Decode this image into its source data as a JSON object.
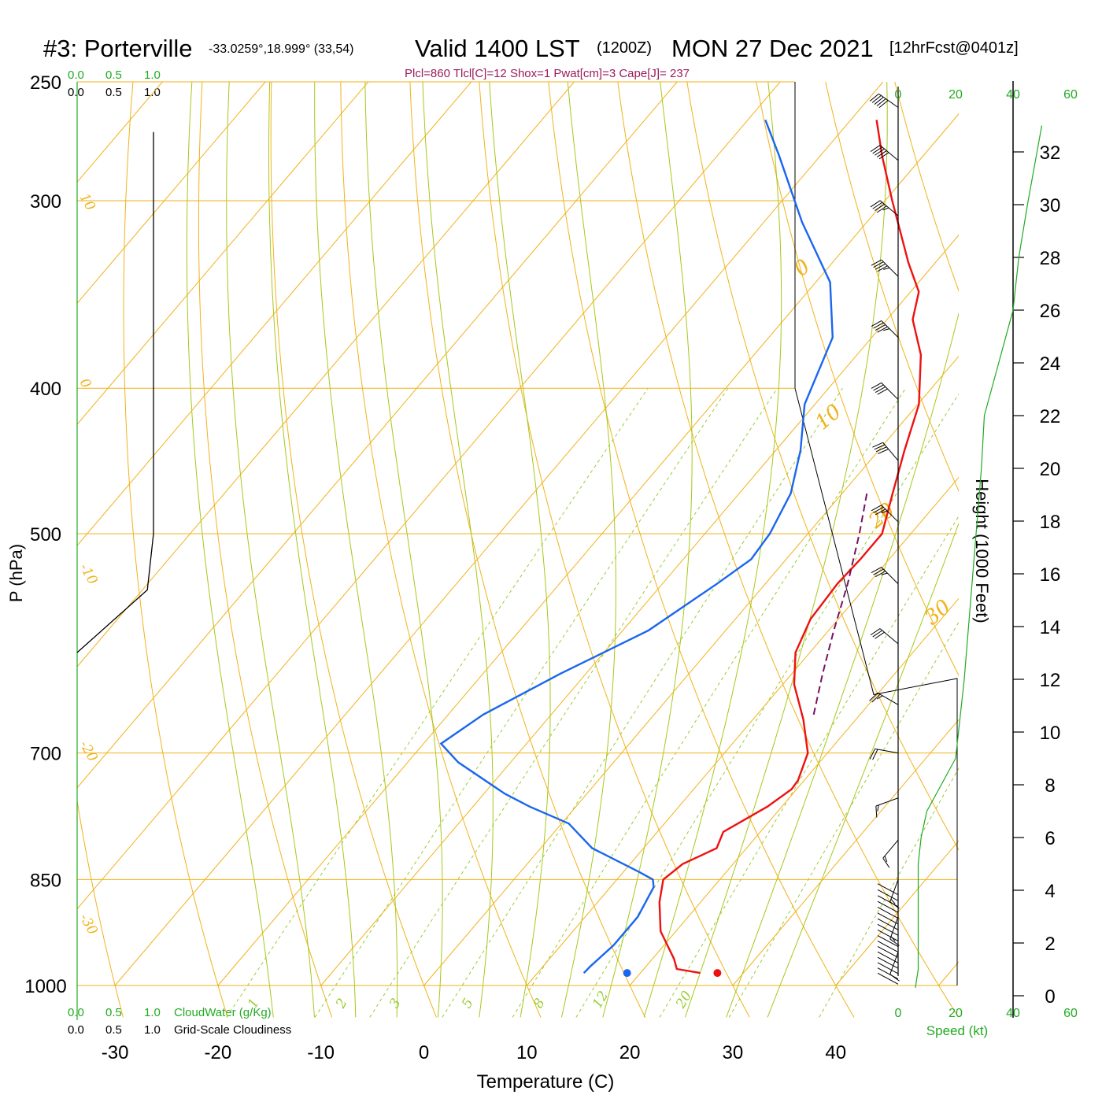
{
  "header": {
    "station": "#3: Porterville",
    "coords": "-33.0259°,18.999° (33,54)",
    "valid": "Valid 1400 LST",
    "utc": "(1200Z)",
    "date": "MON 27 Dec 2021",
    "forecast": "[12hrFcst@0401z]",
    "indices": "Plcl=860 Tlcl[C]=12 Shox=1 Pwat[cm]=3 Cape[J]= 237"
  },
  "colors": {
    "temperature": "#ee1111",
    "dewpoint": "#1a66ee",
    "parcel": "#771166",
    "grid": "#f2b21a",
    "mixing": "#99cc33",
    "moist_adiabat": "#a6c81a",
    "green_text": "#22aa22",
    "indices_text": "#9b1b5a"
  },
  "chart_data": {
    "type": "skew-t sounding",
    "xlabel": "Temperature (C)",
    "ylabel": "P (hPa)",
    "height_axis_label": "Height (1000 Feet)",
    "x_ticks": [
      "-30",
      "-20",
      "-10",
      "0",
      "10",
      "20",
      "30",
      "40"
    ],
    "x_tick_values": [
      -30,
      -20,
      -10,
      0,
      10,
      20,
      30,
      40
    ],
    "p_ticks": [
      "250",
      "300",
      "400",
      "500",
      "700",
      "850",
      "1000"
    ],
    "p_tick_values": [
      250,
      300,
      400,
      500,
      700,
      850,
      1000
    ],
    "xlim": [
      -33.3,
      36.4
    ],
    "plim": [
      250,
      1000
    ],
    "height_ticks": [
      "0",
      "2",
      "4",
      "6",
      "8",
      "10",
      "12",
      "14",
      "16",
      "18",
      "20",
      "22",
      "24",
      "26",
      "28",
      "30",
      "32"
    ],
    "cloud_scale_labels": [
      "0.0",
      "0.5",
      "1.0"
    ],
    "cloudwater_label": "CloudWater (g/Kg)",
    "cloudiness_label": "Grid-Scale Cloudiness",
    "wind_speed_ticks": [
      "0",
      "20",
      "40",
      "60"
    ],
    "wind_speed_label": "Speed (kt)",
    "dry_adiabat_labels": [
      "10",
      "0",
      "-10",
      "-20",
      "-30"
    ],
    "moist_adiabat_labels": [
      "0",
      "10",
      "20",
      "30"
    ],
    "mixing_ratio_labels": [
      "1",
      "2",
      "3",
      "5",
      "8",
      "12",
      "20"
    ],
    "temperature_profile": {
      "name": "Temperature",
      "p": [
        981,
        975,
        960,
        920,
        880,
        850,
        830,
        810,
        790,
        760,
        740,
        730,
        700,
        665,
        630,
        600,
        570,
        540,
        520,
        500,
        470,
        440,
        410,
        380,
        360,
        345,
        330,
        300,
        280,
        265
      ],
      "t": [
        25.8,
        23.2,
        22.1,
        18.5,
        16.0,
        14.5,
        15.1,
        17.1,
        16.4,
        18.6,
        19.5,
        19.4,
        18.1,
        14.9,
        11.1,
        8.6,
        7.3,
        7.0,
        7.2,
        7.2,
        4.9,
        2.5,
        0.1,
        -3.8,
        -7.5,
        -9.2,
        -12.6,
        -19.3,
        -24.0,
        -27.5
      ]
    },
    "dewpoint_profile": {
      "name": "Dewpoint",
      "p": [
        981,
        970,
        940,
        900,
        860,
        850,
        840,
        810,
        780,
        760,
        745,
        710,
        690,
        660,
        620,
        580,
        540,
        520,
        500,
        470,
        440,
        410,
        370,
        340,
        310,
        280,
        265
      ],
      "d": [
        14.5,
        14.6,
        15.1,
        15.1,
        14.2,
        13.5,
        11.5,
        5.0,
        0.7,
        -4.5,
        -8.0,
        -15.1,
        -18.3,
        -16.6,
        -12.5,
        -7.5,
        -4.7,
        -3.4,
        -3.7,
        -5.0,
        -7.6,
        -11.0,
        -13.8,
        -18.6,
        -26.3,
        -34.0,
        -38.3
      ]
    },
    "parcel_trace": {
      "p": [
        660,
        620,
        580,
        540,
        500,
        470
      ],
      "t": [
        15.5,
        13.0,
        10.5,
        8.0,
        5.0,
        2.4
      ]
    },
    "surface_temperature": 26.1,
    "surface_dewpoint": 17.1,
    "surface_pressure": 981,
    "cloud_fraction_profile": {
      "p": [
        270,
        290,
        500,
        545,
        600
      ],
      "fraction": [
        1.0,
        1.0,
        1.0,
        0.92,
        0.0
      ]
    },
    "wind_barbs": [
      {
        "p": 260,
        "speed_kt": 50,
        "dir_deg": 305
      },
      {
        "p": 282,
        "speed_kt": 50,
        "dir_deg": 310
      },
      {
        "p": 307,
        "speed_kt": 45,
        "dir_deg": 310
      },
      {
        "p": 337,
        "speed_kt": 45,
        "dir_deg": 315
      },
      {
        "p": 370,
        "speed_kt": 45,
        "dir_deg": 315
      },
      {
        "p": 407,
        "speed_kt": 40,
        "dir_deg": 315
      },
      {
        "p": 447,
        "speed_kt": 40,
        "dir_deg": 320
      },
      {
        "p": 491,
        "speed_kt": 35,
        "dir_deg": 315
      },
      {
        "p": 540,
        "speed_kt": 35,
        "dir_deg": 315
      },
      {
        "p": 592,
        "speed_kt": 30,
        "dir_deg": 310
      },
      {
        "p": 650,
        "speed_kt": 25,
        "dir_deg": 300
      },
      {
        "p": 700,
        "speed_kt": 20,
        "dir_deg": 280
      },
      {
        "p": 750,
        "speed_kt": 15,
        "dir_deg": 250
      },
      {
        "p": 800,
        "speed_kt": 15,
        "dir_deg": 220
      },
      {
        "p": 850,
        "speed_kt": 15,
        "dir_deg": 200
      },
      {
        "p": 900,
        "speed_kt": 15,
        "dir_deg": 200
      },
      {
        "p": 950,
        "speed_kt": 10,
        "dir_deg": 200
      }
    ],
    "wind_speed_profile": {
      "height_kft": [
        0.3,
        1.0,
        4.0,
        5.0,
        6.0,
        7.0,
        8.0,
        9.0,
        10.0,
        12.0,
        16.0,
        20.0,
        22.0,
        24.0,
        26.0,
        28.0,
        30.0,
        33.0
      ],
      "speed_kt": [
        6,
        7,
        7,
        7,
        8,
        10,
        15,
        20,
        21,
        23,
        26,
        29,
        30,
        35,
        40,
        42,
        45,
        50
      ]
    }
  }
}
